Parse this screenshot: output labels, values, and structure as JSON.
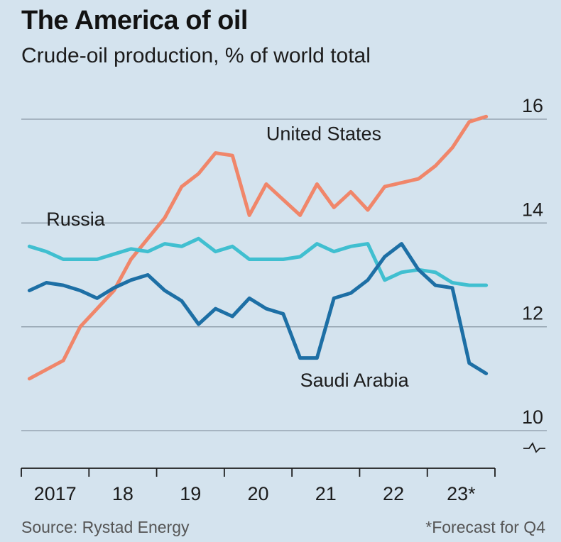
{
  "chart_data": {
    "type": "line",
    "title": "The America of oil",
    "subtitle": "Crude-oil production, % of world total",
    "ylim": [
      10,
      16
    ],
    "y_ticks": [
      10,
      12,
      14,
      16
    ],
    "x_range": [
      2017,
      2024
    ],
    "x_ticks": [
      {
        "label": "2017",
        "x": 2017.5
      },
      {
        "label": "18",
        "x": 2018.5
      },
      {
        "label": "19",
        "x": 2019.5
      },
      {
        "label": "20",
        "x": 2020.5
      },
      {
        "label": "21",
        "x": 2021.5
      },
      {
        "label": "22",
        "x": 2022.5
      },
      {
        "label": "23*",
        "x": 2023.5
      }
    ],
    "axis_break": true,
    "grid": "horizontal",
    "series": [
      {
        "name": "United States",
        "color": "#f0866a",
        "points": [
          [
            2017.12,
            11.0
          ],
          [
            2017.62,
            11.35
          ],
          [
            2017.87,
            12.0
          ],
          [
            2018.37,
            12.7
          ],
          [
            2018.62,
            13.3
          ],
          [
            2019.12,
            14.1
          ],
          [
            2019.37,
            14.7
          ],
          [
            2019.62,
            14.95
          ],
          [
            2019.87,
            15.35
          ],
          [
            2020.12,
            15.3
          ],
          [
            2020.37,
            14.15
          ],
          [
            2020.62,
            14.75
          ],
          [
            2021.12,
            14.15
          ],
          [
            2021.37,
            14.75
          ],
          [
            2021.62,
            14.3
          ],
          [
            2021.87,
            14.6
          ],
          [
            2022.12,
            14.25
          ],
          [
            2022.37,
            14.7
          ],
          [
            2022.87,
            14.85
          ],
          [
            2023.12,
            15.1
          ],
          [
            2023.37,
            15.45
          ],
          [
            2023.62,
            15.95
          ],
          [
            2023.87,
            16.05
          ]
        ]
      },
      {
        "name": "Russia",
        "color": "#40bfd0",
        "points": [
          [
            2017.12,
            13.55
          ],
          [
            2017.37,
            13.45
          ],
          [
            2017.62,
            13.3
          ],
          [
            2017.87,
            13.3
          ],
          [
            2018.12,
            13.3
          ],
          [
            2018.37,
            13.4
          ],
          [
            2018.62,
            13.5
          ],
          [
            2018.87,
            13.45
          ],
          [
            2019.12,
            13.6
          ],
          [
            2019.37,
            13.55
          ],
          [
            2019.62,
            13.7
          ],
          [
            2019.87,
            13.45
          ],
          [
            2020.12,
            13.55
          ],
          [
            2020.37,
            13.3
          ],
          [
            2020.62,
            13.3
          ],
          [
            2020.87,
            13.3
          ],
          [
            2021.12,
            13.35
          ],
          [
            2021.37,
            13.6
          ],
          [
            2021.62,
            13.45
          ],
          [
            2021.87,
            13.55
          ],
          [
            2022.12,
            13.6
          ],
          [
            2022.37,
            12.9
          ],
          [
            2022.62,
            13.05
          ],
          [
            2022.87,
            13.1
          ],
          [
            2023.12,
            13.05
          ],
          [
            2023.37,
            12.85
          ],
          [
            2023.62,
            12.8
          ],
          [
            2023.87,
            12.8
          ]
        ]
      },
      {
        "name": "Saudi Arabia",
        "color": "#1d6fa5",
        "points": [
          [
            2017.12,
            12.7
          ],
          [
            2017.37,
            12.85
          ],
          [
            2017.62,
            12.8
          ],
          [
            2017.87,
            12.7
          ],
          [
            2018.12,
            12.55
          ],
          [
            2018.37,
            12.75
          ],
          [
            2018.62,
            12.9
          ],
          [
            2018.87,
            13.0
          ],
          [
            2019.12,
            12.7
          ],
          [
            2019.37,
            12.5
          ],
          [
            2019.62,
            12.05
          ],
          [
            2019.87,
            12.35
          ],
          [
            2020.12,
            12.2
          ],
          [
            2020.37,
            12.55
          ],
          [
            2020.62,
            12.35
          ],
          [
            2020.87,
            12.25
          ],
          [
            2021.12,
            11.4
          ],
          [
            2021.37,
            11.4
          ],
          [
            2021.62,
            12.55
          ],
          [
            2021.87,
            12.65
          ],
          [
            2022.12,
            12.9
          ],
          [
            2022.37,
            13.35
          ],
          [
            2022.62,
            13.6
          ],
          [
            2022.87,
            13.1
          ],
          [
            2023.12,
            12.8
          ],
          [
            2023.37,
            12.75
          ],
          [
            2023.62,
            11.3
          ],
          [
            2023.87,
            11.1
          ]
        ]
      }
    ],
    "labels": [
      {
        "series": "United States",
        "text": "United States",
        "x": 2020.62,
        "y": 15.6
      },
      {
        "series": "Russia",
        "text": "Russia",
        "x": 2017.37,
        "y": 13.95
      },
      {
        "series": "Saudi Arabia",
        "text": "Saudi Arabia",
        "x": 2021.12,
        "y": 10.85
      }
    ],
    "source": "Source: Rystad Energy",
    "footnote": "*Forecast for Q4"
  }
}
